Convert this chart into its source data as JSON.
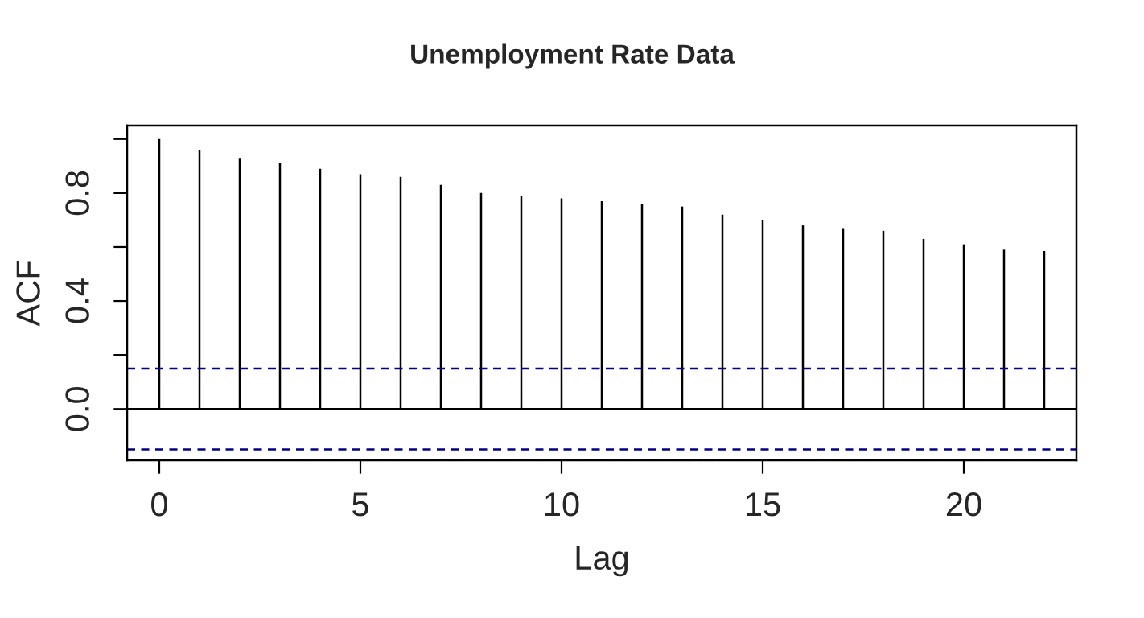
{
  "chart_data": {
    "type": "bar",
    "title": "Unemployment Rate Data",
    "xlabel": "Lag",
    "ylabel": "ACF",
    "x": [
      0,
      1,
      2,
      3,
      4,
      5,
      6,
      7,
      8,
      9,
      10,
      11,
      12,
      13,
      14,
      15,
      16,
      17,
      18,
      19,
      20,
      21,
      22
    ],
    "values": [
      1.0,
      0.96,
      0.93,
      0.91,
      0.89,
      0.87,
      0.86,
      0.83,
      0.8,
      0.79,
      0.78,
      0.77,
      0.76,
      0.75,
      0.72,
      0.7,
      0.68,
      0.67,
      0.66,
      0.63,
      0.61,
      0.59,
      0.585
    ],
    "color": "#000000",
    "xlim": [
      -0.8,
      22.8
    ],
    "ylim": [
      -0.19,
      1.05
    ],
    "xticks": [
      0,
      5,
      10,
      15,
      20
    ],
    "yticks": [
      {
        "value": 0,
        "label": "0.0"
      },
      {
        "value": 0.2,
        "label": null
      },
      0.4,
      {
        "value": 0.6,
        "label": null
      },
      0.8,
      {
        "value": 1.0,
        "label": null
      }
    ],
    "ref_lines": [
      {
        "axis": "y",
        "value": 0,
        "color": "#000000",
        "line_style": "solid"
      },
      {
        "axis": "y",
        "value": 0.15,
        "color": "#00008b",
        "line_style": "dashed"
      },
      {
        "axis": "y",
        "value": -0.15,
        "color": "#00008b",
        "line_style": "dashed"
      }
    ],
    "legend": false
  }
}
